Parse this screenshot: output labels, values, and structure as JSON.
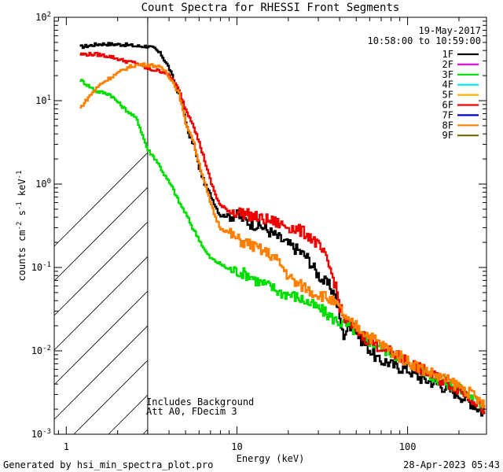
{
  "chart_data": {
    "type": "line",
    "title": "Count Spectra for RHESSI Front Segments",
    "xlabel": "Energy (keV)",
    "ylabel_parts": {
      "a": "counts cm",
      "b": "-2",
      "c": " s",
      "d": "-1",
      "e": " keV",
      "f": "-1"
    },
    "x_scale": "log",
    "y_scale": "log",
    "xlim": [
      0.85,
      290
    ],
    "ylim": [
      0.001,
      100
    ],
    "x_ticks": [
      {
        "value": 10,
        "label": "10"
      },
      {
        "value": 100,
        "label": "100"
      }
    ],
    "x_edge_labels": [
      {
        "value": 1,
        "label": "1"
      }
    ],
    "y_ticks": [
      {
        "value": 0.001,
        "base": "10",
        "exp": "-3"
      },
      {
        "value": 0.01,
        "base": "10",
        "exp": "-2"
      },
      {
        "value": 0.1,
        "base": "10",
        "exp": "-1"
      },
      {
        "value": 1,
        "base": "10",
        "exp": "0"
      },
      {
        "value": 10,
        "base": "10",
        "exp": "1"
      },
      {
        "value": 100,
        "base": "10",
        "exp": "2"
      }
    ],
    "legend": {
      "date": "19-May-2017",
      "time": "10:58:00 to 10:59:00",
      "placement": "top-right",
      "entries": [
        {
          "label": "1F",
          "color": "#000000"
        },
        {
          "label": "2F",
          "color": "#ff00ff"
        },
        {
          "label": "3F",
          "color": "#00dd00"
        },
        {
          "label": "4F",
          "color": "#00e5ee"
        },
        {
          "label": "5F",
          "color": "#ffb000"
        },
        {
          "label": "6F",
          "color": "#ee0000"
        },
        {
          "label": "7F",
          "color": "#0000cc"
        },
        {
          "label": "8F",
          "color": "#ff7f00"
        },
        {
          "label": "9F",
          "color": "#6b6b00"
        }
      ]
    },
    "shaded_region": {
      "from": 0.85,
      "to": 3,
      "style": "diagonal-hatch"
    },
    "annotations": [
      "Includes Background",
      "Att A0, FDecim 3"
    ],
    "series": [
      {
        "name": "1F",
        "color": "#000000",
        "points": [
          [
            1.2,
            44
          ],
          [
            1.6,
            48
          ],
          [
            2.2,
            47
          ],
          [
            2.6,
            45
          ],
          [
            3.0,
            45
          ],
          [
            3.3,
            42
          ],
          [
            3.6,
            36
          ],
          [
            4.0,
            25
          ],
          [
            4.4,
            15
          ],
          [
            4.8,
            9
          ],
          [
            5.2,
            4
          ],
          [
            5.6,
            3
          ],
          [
            6.0,
            1.6
          ],
          [
            6.5,
            1.0
          ],
          [
            7.0,
            0.75
          ],
          [
            7.5,
            0.55
          ],
          [
            8.0,
            0.42
          ],
          [
            9.0,
            0.42
          ],
          [
            10,
            0.42
          ],
          [
            11,
            0.38
          ],
          [
            12,
            0.34
          ],
          [
            14,
            0.31
          ],
          [
            16,
            0.26
          ],
          [
            18,
            0.22
          ],
          [
            20,
            0.19
          ],
          [
            23,
            0.16
          ],
          [
            26,
            0.13
          ],
          [
            29,
            0.09
          ],
          [
            32,
            0.07
          ],
          [
            35,
            0.06
          ],
          [
            38,
            0.045
          ],
          [
            40,
            0.025
          ],
          [
            42,
            0.015
          ],
          [
            44,
            0.018
          ],
          [
            47,
            0.021
          ],
          [
            52,
            0.015
          ],
          [
            56,
            0.012
          ],
          [
            60,
            0.0105
          ],
          [
            68,
            0.0075
          ],
          [
            75,
            0.0075
          ],
          [
            85,
            0.0065
          ],
          [
            100,
            0.006
          ],
          [
            120,
            0.0047
          ],
          [
            150,
            0.004
          ],
          [
            200,
            0.003
          ],
          [
            250,
            0.0022
          ],
          [
            285,
            0.0017
          ]
        ]
      },
      {
        "name": "3F",
        "color": "#00dd00",
        "points": [
          [
            1.2,
            18
          ],
          [
            1.5,
            13
          ],
          [
            1.8,
            12
          ],
          [
            2.2,
            8
          ],
          [
            2.6,
            6
          ],
          [
            3.0,
            2.6
          ],
          [
            3.4,
            1.9
          ],
          [
            3.8,
            1.25
          ],
          [
            4.2,
            0.9
          ],
          [
            4.6,
            0.6
          ],
          [
            5.0,
            0.45
          ],
          [
            5.5,
            0.3
          ],
          [
            6.0,
            0.22
          ],
          [
            6.5,
            0.16
          ],
          [
            7.0,
            0.13
          ],
          [
            8.0,
            0.11
          ],
          [
            9.0,
            0.095
          ],
          [
            10,
            0.09
          ],
          [
            11,
            0.085
          ],
          [
            12,
            0.08
          ],
          [
            13,
            0.07
          ],
          [
            14,
            0.065
          ],
          [
            16,
            0.058
          ],
          [
            18,
            0.05
          ],
          [
            20,
            0.048
          ],
          [
            22,
            0.045
          ],
          [
            25,
            0.04
          ],
          [
            28,
            0.035
          ],
          [
            32,
            0.03
          ],
          [
            36,
            0.025
          ],
          [
            40,
            0.022
          ],
          [
            45,
            0.02
          ],
          [
            50,
            0.017
          ],
          [
            60,
            0.013
          ],
          [
            70,
            0.011
          ],
          [
            80,
            0.0095
          ],
          [
            100,
            0.0075
          ],
          [
            120,
            0.006
          ],
          [
            150,
            0.0046
          ],
          [
            200,
            0.0035
          ],
          [
            250,
            0.0026
          ],
          [
            285,
            0.002
          ]
        ]
      },
      {
        "name": "6F",
        "color": "#ee0000",
        "points": [
          [
            1.2,
            36
          ],
          [
            1.5,
            36
          ],
          [
            1.8,
            34
          ],
          [
            2.2,
            30
          ],
          [
            2.6,
            28
          ],
          [
            3.0,
            24
          ],
          [
            3.4,
            23
          ],
          [
            3.8,
            22
          ],
          [
            4.2,
            18
          ],
          [
            4.6,
            13
          ],
          [
            5.0,
            8
          ],
          [
            5.5,
            5.5
          ],
          [
            6.0,
            3.2
          ],
          [
            6.5,
            1.9
          ],
          [
            7.0,
            1.1
          ],
          [
            7.5,
            0.75
          ],
          [
            8.0,
            0.55
          ],
          [
            9.0,
            0.48
          ],
          [
            10,
            0.46
          ],
          [
            11,
            0.45
          ],
          [
            12,
            0.42
          ],
          [
            13,
            0.4
          ],
          [
            14,
            0.38
          ],
          [
            16,
            0.36
          ],
          [
            18,
            0.33
          ],
          [
            20,
            0.31
          ],
          [
            23,
            0.28
          ],
          [
            26,
            0.25
          ],
          [
            29,
            0.2
          ],
          [
            32,
            0.15
          ],
          [
            35,
            0.1
          ],
          [
            38,
            0.06
          ],
          [
            40,
            0.035
          ],
          [
            42,
            0.025
          ],
          [
            45,
            0.022
          ],
          [
            50,
            0.018
          ],
          [
            60,
            0.013
          ],
          [
            70,
            0.011
          ],
          [
            80,
            0.0095
          ],
          [
            100,
            0.0075
          ],
          [
            120,
            0.006
          ],
          [
            150,
            0.0047
          ],
          [
            200,
            0.0035
          ],
          [
            250,
            0.0025
          ],
          [
            285,
            0.0019
          ]
        ]
      },
      {
        "name": "8F",
        "color": "#ff7f00",
        "points": [
          [
            1.2,
            8
          ],
          [
            1.4,
            12
          ],
          [
            1.6,
            16
          ],
          [
            1.9,
            20
          ],
          [
            2.3,
            25
          ],
          [
            2.6,
            27
          ],
          [
            3.0,
            27
          ],
          [
            3.4,
            26
          ],
          [
            3.8,
            23
          ],
          [
            4.2,
            17
          ],
          [
            4.6,
            12
          ],
          [
            5.0,
            5.5
          ],
          [
            5.5,
            3.5
          ],
          [
            6.0,
            1.8
          ],
          [
            6.5,
            1.0
          ],
          [
            7.0,
            0.6
          ],
          [
            7.5,
            0.4
          ],
          [
            8.0,
            0.3
          ],
          [
            9.0,
            0.26
          ],
          [
            10,
            0.22
          ],
          [
            11,
            0.2
          ],
          [
            12,
            0.19
          ],
          [
            13,
            0.17
          ],
          [
            14,
            0.16
          ],
          [
            16,
            0.14
          ],
          [
            18,
            0.11
          ],
          [
            20,
            0.08
          ],
          [
            22,
            0.065
          ],
          [
            25,
            0.058
          ],
          [
            28,
            0.05
          ],
          [
            32,
            0.046
          ],
          [
            36,
            0.04
          ],
          [
            40,
            0.032
          ],
          [
            45,
            0.022
          ],
          [
            50,
            0.02
          ],
          [
            60,
            0.015
          ],
          [
            70,
            0.012
          ],
          [
            80,
            0.01
          ],
          [
            100,
            0.0075
          ],
          [
            120,
            0.0062
          ],
          [
            150,
            0.005
          ],
          [
            200,
            0.0038
          ],
          [
            250,
            0.0028
          ],
          [
            285,
            0.0021
          ]
        ]
      }
    ]
  },
  "footer": {
    "generated": "Generated by hsi_min_spectra_plot.pro",
    "timestamp": "28-Apr-2023 05:43"
  }
}
